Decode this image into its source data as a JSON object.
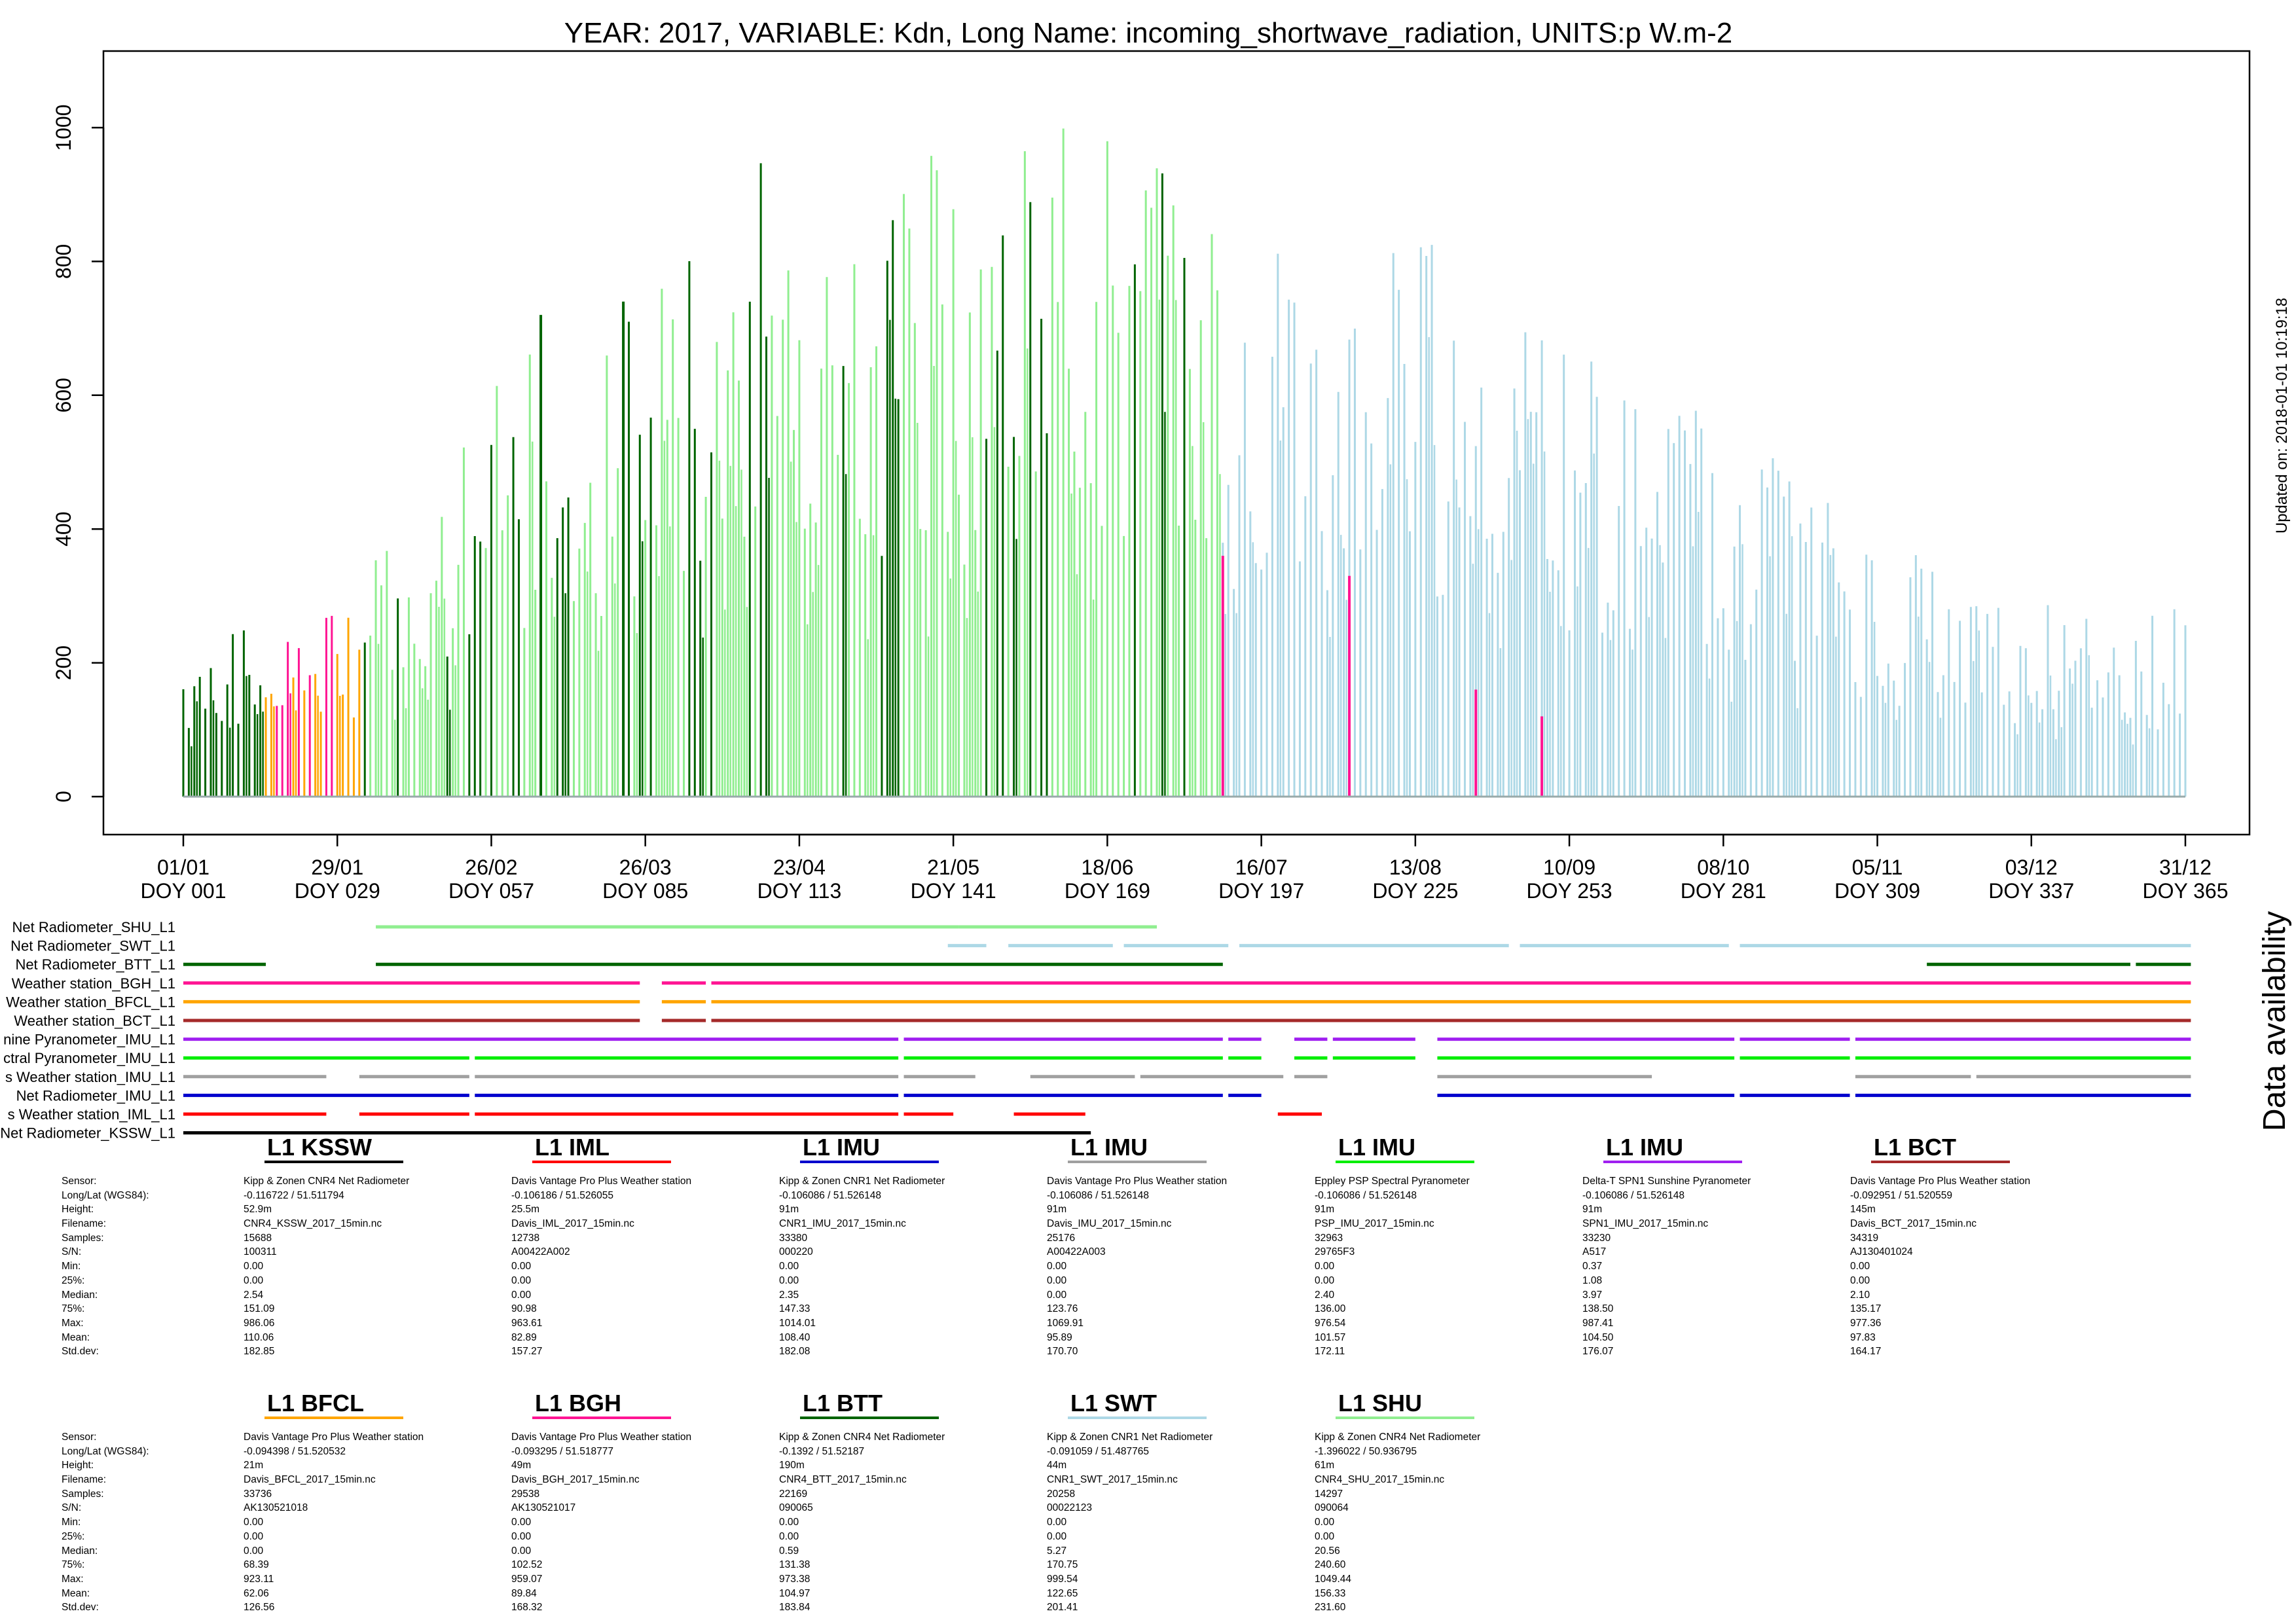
{
  "page": {
    "updated_label": "Updated on: 2018-01-01 10:19:18",
    "availability_label": "Data availability"
  },
  "chart_data": {
    "type": "line",
    "title": "YEAR: 2017, VARIABLE: Kdn, Long Name: incoming_shortwave_radiation, UNITS:p W.m-2",
    "xlabel": "",
    "ylabel": "",
    "ylim": [
      0,
      1100
    ],
    "xlim": [
      1,
      366
    ],
    "y_ticks": [
      0,
      200,
      400,
      600,
      800,
      1000
    ],
    "x_ticks": [
      {
        "doy": 1,
        "date": "01/01",
        "doy_label": "DOY 001"
      },
      {
        "doy": 29,
        "date": "29/01",
        "doy_label": "DOY 029"
      },
      {
        "doy": 57,
        "date": "26/02",
        "doy_label": "DOY 057"
      },
      {
        "doy": 85,
        "date": "26/03",
        "doy_label": "DOY 085"
      },
      {
        "doy": 113,
        "date": "23/04",
        "doy_label": "DOY 113"
      },
      {
        "doy": 141,
        "date": "21/05",
        "doy_label": "DOY 141"
      },
      {
        "doy": 169,
        "date": "18/06",
        "doy_label": "DOY 169"
      },
      {
        "doy": 197,
        "date": "16/07",
        "doy_label": "DOY 197"
      },
      {
        "doy": 225,
        "date": "13/08",
        "doy_label": "DOY 225"
      },
      {
        "doy": 253,
        "date": "10/09",
        "doy_label": "DOY 253"
      },
      {
        "doy": 281,
        "date": "08/10",
        "doy_label": "DOY 281"
      },
      {
        "doy": 309,
        "date": "05/11",
        "doy_label": "DOY 309"
      },
      {
        "doy": 337,
        "date": "03/12",
        "doy_label": "DOY 337"
      },
      {
        "doy": 365,
        "date": "31/12",
        "doy_label": "DOY 365"
      }
    ],
    "grid": false,
    "series": [
      {
        "name": "L1 KSSW",
        "color": "#000000"
      },
      {
        "name": "L1 IML",
        "color": "#ff0000"
      },
      {
        "name": "L1 IMU (CNR1)",
        "color": "#0000cd"
      },
      {
        "name": "L1 IMU (Davis)",
        "color": "#a0a0a0"
      },
      {
        "name": "L1 IMU (PSP)",
        "color": "#00ee00"
      },
      {
        "name": "L1 IMU (SPN1)",
        "color": "#a020f0"
      },
      {
        "name": "L1 BCT",
        "color": "#a52a2a"
      },
      {
        "name": "L1 BFCL",
        "color": "#ffa500"
      },
      {
        "name": "L1 BGH",
        "color": "#ff1493"
      },
      {
        "name": "L1 BTT",
        "color": "#006400"
      },
      {
        "name": "L1 SWT",
        "color": "#add8e6"
      },
      {
        "name": "L1 SHU",
        "color": "#90ee90"
      }
    ],
    "daily_max_envelope": {
      "description_doy": [
        1,
        15,
        29,
        45,
        57,
        71,
        85,
        99,
        113,
        127,
        141,
        155,
        169,
        183,
        197,
        211,
        225,
        239,
        253,
        267,
        281,
        295,
        309,
        323,
        337,
        351,
        365
      ],
      "values": [
        240,
        260,
        300,
        480,
        610,
        720,
        740,
        920,
        980,
        1000,
        960,
        1000,
        1010,
        920,
        860,
        840,
        860,
        760,
        700,
        620,
        560,
        480,
        400,
        340,
        300,
        260,
        300
      ]
    }
  },
  "availability": {
    "rows": [
      {
        "label": "Net Radiometer_SHU_L1",
        "color": "#90ee90",
        "segments": [
          [
            36,
            142
          ],
          [
            142,
            178
          ]
        ]
      },
      {
        "label": "Net Radiometer_SWT_L1",
        "color": "#add8e6",
        "segments": [
          [
            140,
            147
          ],
          [
            151,
            170
          ],
          [
            172,
            191
          ],
          [
            193,
            242
          ],
          [
            244,
            282
          ],
          [
            284,
            366
          ]
        ]
      },
      {
        "label": "Net Radiometer_BTT_L1",
        "color": "#006400",
        "segments": [
          [
            1,
            16
          ],
          [
            36,
            190
          ],
          [
            318,
            355
          ],
          [
            356,
            366
          ]
        ]
      },
      {
        "label": "Weather station_BGH_L1",
        "color": "#ff1493",
        "segments": [
          [
            1,
            84
          ],
          [
            88,
            96
          ],
          [
            97,
            366
          ]
        ]
      },
      {
        "label": "Weather station_BFCL_L1",
        "color": "#ffa500",
        "segments": [
          [
            1,
            84
          ],
          [
            88,
            96
          ],
          [
            97,
            366
          ]
        ]
      },
      {
        "label": "Weather station_BCT_L1",
        "color": "#a52a2a",
        "segments": [
          [
            1,
            84
          ],
          [
            88,
            96
          ],
          [
            97,
            366
          ]
        ]
      },
      {
        "label": "nine Pyranometer_IMU_L1",
        "color": "#a020f0",
        "segments": [
          [
            1,
            131
          ],
          [
            132,
            190
          ],
          [
            191,
            197
          ],
          [
            203,
            209
          ],
          [
            210,
            225
          ],
          [
            229,
            283
          ],
          [
            284,
            304
          ],
          [
            305,
            366
          ]
        ]
      },
      {
        "label": "ctral Pyranometer_IMU_L1",
        "color": "#00ee00",
        "segments": [
          [
            1,
            53
          ],
          [
            54,
            131
          ],
          [
            132,
            190
          ],
          [
            191,
            197
          ],
          [
            203,
            209
          ],
          [
            210,
            225
          ],
          [
            229,
            283
          ],
          [
            284,
            304
          ],
          [
            305,
            366
          ]
        ]
      },
      {
        "label": "s Weather station_IMU_L1",
        "color": "#a0a0a0",
        "segments": [
          [
            1,
            27
          ],
          [
            33,
            53
          ],
          [
            54,
            131
          ],
          [
            132,
            145
          ],
          [
            155,
            174
          ],
          [
            175,
            201
          ],
          [
            203,
            209
          ],
          [
            229,
            268
          ],
          [
            305,
            326
          ],
          [
            327,
            366
          ]
        ]
      },
      {
        "label": "Net Radiometer_IMU_L1",
        "color": "#0000cd",
        "segments": [
          [
            1,
            53
          ],
          [
            54,
            131
          ],
          [
            132,
            190
          ],
          [
            191,
            197
          ],
          [
            229,
            283
          ],
          [
            284,
            304
          ],
          [
            305,
            366
          ]
        ]
      },
      {
        "label": "s Weather station_IML_L1",
        "color": "#ff0000",
        "segments": [
          [
            1,
            27
          ],
          [
            33,
            53
          ],
          [
            54,
            131
          ],
          [
            132,
            141
          ],
          [
            152,
            165
          ],
          [
            200,
            208
          ]
        ]
      },
      {
        "label": "Net Radiometer_KSSW_L1",
        "color": "#000000",
        "segments": [
          [
            1,
            166
          ]
        ]
      }
    ]
  },
  "info_labels": [
    "Sensor:",
    "Long/Lat (WGS84):",
    "Height:",
    "Filename:",
    "Samples:",
    "S/N:",
    "Min:",
    "25%:",
    "Median:",
    "75%:",
    "Max:",
    "Mean:",
    "Std.dev:"
  ],
  "stations_row1": [
    {
      "title": "L1 KSSW",
      "color": "#000000",
      "values": [
        "Kipp & Zonen CNR4 Net Radiometer",
        "-0.116722 / 51.511794",
        "52.9m",
        "CNR4_KSSW_2017_15min.nc",
        "15688",
        "100311",
        "0.00",
        "0.00",
        "2.54",
        "151.09",
        "986.06",
        "110.06",
        "182.85"
      ]
    },
    {
      "title": "L1 IML",
      "color": "#ff0000",
      "values": [
        "Davis Vantage Pro Plus Weather station",
        "-0.106186 / 51.526055",
        "25.5m",
        "Davis_IML_2017_15min.nc",
        "12738",
        "A00422A002",
        "0.00",
        "0.00",
        "0.00",
        "90.98",
        "963.61",
        "82.89",
        "157.27"
      ]
    },
    {
      "title": "L1 IMU",
      "color": "#0000cd",
      "values": [
        "Kipp & Zonen CNR1 Net Radiometer",
        "-0.106086 / 51.526148",
        "91m",
        "CNR1_IMU_2017_15min.nc",
        "33380",
        "000220",
        "0.00",
        "0.00",
        "2.35",
        "147.33",
        "1014.01",
        "108.40",
        "182.08"
      ]
    },
    {
      "title": "L1 IMU",
      "color": "#a0a0a0",
      "values": [
        "Davis Vantage Pro Plus Weather station",
        "-0.106086 / 51.526148",
        "91m",
        "Davis_IMU_2017_15min.nc",
        "25176",
        "A00422A003",
        "0.00",
        "0.00",
        "0.00",
        "123.76",
        "1069.91",
        "95.89",
        "170.70"
      ]
    },
    {
      "title": "L1 IMU",
      "color": "#00ee00",
      "values": [
        "Eppley PSP Spectral Pyranometer",
        "-0.106086 / 51.526148",
        "91m",
        "PSP_IMU_2017_15min.nc",
        "32963",
        "29765F3",
        "0.00",
        "0.00",
        "2.40",
        "136.00",
        "976.54",
        "101.57",
        "172.11"
      ]
    },
    {
      "title": "L1 IMU",
      "color": "#a020f0",
      "values": [
        "Delta-T SPN1 Sunshine Pyranometer",
        "-0.106086 / 51.526148",
        "91m",
        "SPN1_IMU_2017_15min.nc",
        "33230",
        "A517",
        "0.37",
        "1.08",
        "3.97",
        "138.50",
        "987.41",
        "104.50",
        "176.07"
      ]
    },
    {
      "title": "L1 BCT",
      "color": "#a52a2a",
      "values": [
        "Davis Vantage Pro Plus Weather station",
        "-0.092951 / 51.520559",
        "145m",
        "Davis_BCT_2017_15min.nc",
        "34319",
        "AJ130401024",
        "0.00",
        "0.00",
        "2.10",
        "135.17",
        "977.36",
        "97.83",
        "164.17"
      ]
    }
  ],
  "stations_row2": [
    {
      "title": "L1 BFCL",
      "color": "#ffa500",
      "values": [
        "Davis Vantage Pro Plus Weather station",
        "-0.094398 / 51.520532",
        "21m",
        "Davis_BFCL_2017_15min.nc",
        "33736",
        "AK130521018",
        "0.00",
        "0.00",
        "0.00",
        "68.39",
        "923.11",
        "62.06",
        "126.56"
      ]
    },
    {
      "title": "L1 BGH",
      "color": "#ff1493",
      "values": [
        "Davis Vantage Pro Plus Weather station",
        "-0.093295 / 51.518777",
        "49m",
        "Davis_BGH_2017_15min.nc",
        "29538",
        "AK130521017",
        "0.00",
        "0.00",
        "0.00",
        "102.52",
        "959.07",
        "89.84",
        "168.32"
      ]
    },
    {
      "title": "L1 BTT",
      "color": "#006400",
      "values": [
        "Kipp & Zonen CNR4 Net Radiometer",
        "-0.1392 / 51.52187",
        "190m",
        "CNR4_BTT_2017_15min.nc",
        "22169",
        "090065",
        "0.00",
        "0.00",
        "0.59",
        "131.38",
        "973.38",
        "104.97",
        "183.84"
      ]
    },
    {
      "title": "L1 SWT",
      "color": "#add8e6",
      "values": [
        "Kipp & Zonen CNR1 Net Radiometer",
        "-0.091059 / 51.487765",
        "44m",
        "CNR1_SWT_2017_15min.nc",
        "20258",
        "00022123",
        "0.00",
        "0.00",
        "5.27",
        "170.75",
        "999.54",
        "122.65",
        "201.41"
      ]
    },
    {
      "title": "L1 SHU",
      "color": "#90ee90",
      "values": [
        "Kipp & Zonen CNR4 Net Radiometer",
        "-1.396022 / 50.936795",
        "61m",
        "CNR4_SHU_2017_15min.nc",
        "14297",
        "090064",
        "0.00",
        "0.00",
        "20.56",
        "240.60",
        "1049.44",
        "156.33",
        "231.60"
      ]
    }
  ]
}
